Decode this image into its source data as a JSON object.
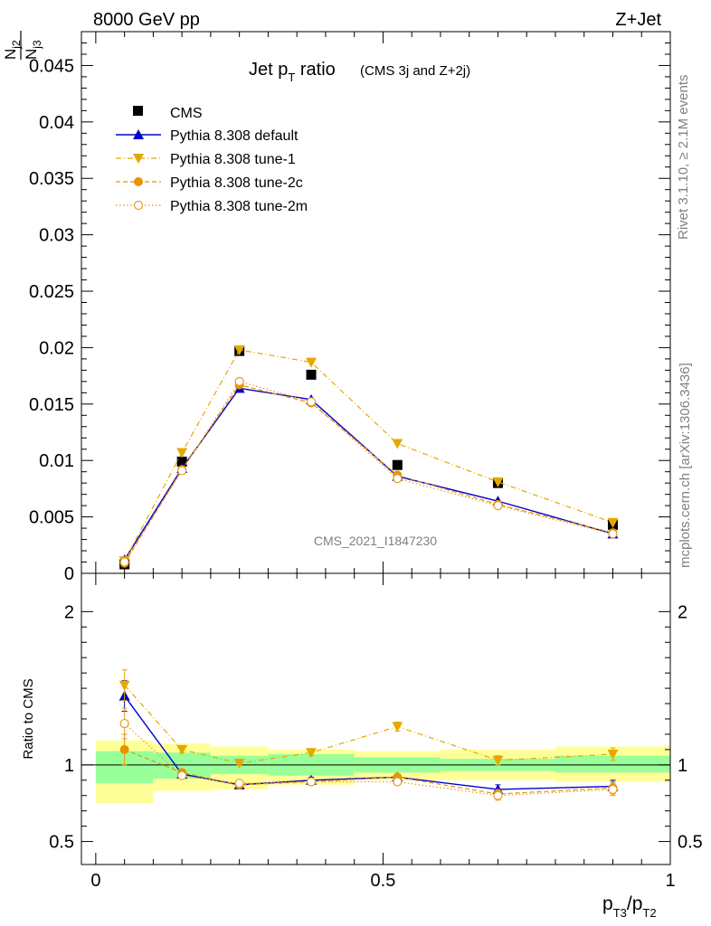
{
  "header": {
    "left": "8000 GeV pp",
    "right": "Z+Jet"
  },
  "side": {
    "rivet": "Rivet 3.1.10, ≥ 2.1M events",
    "mcplots": "mcplots.cern.ch [arXiv:1306.3436]"
  },
  "watermark": "CMS_2021_I1847230",
  "labels": {
    "title_main": "Jet p",
    "title_sub": "T",
    "title_rest": " ratio",
    "title_small": "(CMS 3j and Z+2j)",
    "ylabel_num_N": "N",
    "ylabel_num_sub": "j3",
    "ylabel_den_N": "N",
    "ylabel_den_sub": "j2",
    "ratio_ylabel": "Ratio to CMS",
    "xlabel_p1": "p",
    "xlabel_sub1": "T3",
    "xlabel_slash": "/p",
    "xlabel_sub2": "T2"
  },
  "colors": {
    "cms": "#000000",
    "default": "#0000cc",
    "tune1": "#e6a800",
    "tune2c": "#e69500",
    "tune2m": "#e69b1f",
    "band_inner": "#99ff99",
    "band_outer": "#ffff99"
  },
  "chart_data": {
    "type": "line",
    "x": [
      0.05,
      0.15,
      0.25,
      0.375,
      0.525,
      0.7,
      0.9
    ],
    "xlim": [
      -0.025,
      1.0
    ],
    "ylim": [
      0,
      0.048
    ],
    "yticks": [
      0,
      0.005,
      0.01,
      0.015,
      0.02,
      0.025,
      0.03,
      0.035,
      0.04,
      0.045
    ],
    "ytick_labels": [
      "0",
      "0.005",
      "0.01",
      "0.015",
      "0.02",
      "0.025",
      "0.03",
      "0.035",
      "0.04",
      "0.045"
    ],
    "xticks": [
      0,
      0.5,
      1
    ],
    "xtick_labels": [
      "0",
      "0.5",
      "1"
    ],
    "ratio_ylim": [
      0.35,
      2.25
    ],
    "ratio_yticks": [
      0.5,
      1,
      2
    ],
    "ratio_ytick_labels": [
      "0.5",
      "1",
      "2"
    ],
    "bins": [
      [
        0.0,
        0.1
      ],
      [
        0.1,
        0.2
      ],
      [
        0.2,
        0.3
      ],
      [
        0.3,
        0.45
      ],
      [
        0.45,
        0.6
      ],
      [
        0.6,
        0.8
      ],
      [
        0.8,
        1.0
      ]
    ],
    "band_inner": [
      [
        0.88,
        1.09
      ],
      [
        0.91,
        1.08
      ],
      [
        0.94,
        1.06
      ],
      [
        0.93,
        1.07
      ],
      [
        0.95,
        1.05
      ],
      [
        0.96,
        1.04
      ],
      [
        0.95,
        1.06
      ]
    ],
    "band_outer": [
      [
        0.75,
        1.16
      ],
      [
        0.83,
        1.14
      ],
      [
        0.84,
        1.12
      ],
      [
        0.87,
        1.1
      ],
      [
        0.9,
        1.09
      ],
      [
        0.9,
        1.1
      ],
      [
        0.89,
        1.12
      ]
    ],
    "series": [
      {
        "name": "CMS",
        "key": "cms",
        "values": [
          0.0008,
          0.0099,
          0.0197,
          0.0176,
          0.0096,
          0.008,
          0.0043
        ],
        "ratio": [
          1.0,
          1.0,
          1.0,
          1.0,
          1.0,
          1.0,
          1.0
        ]
      },
      {
        "name": "Pythia 8.308 default",
        "key": "default",
        "values": [
          0.0012,
          0.0093,
          0.0164,
          0.0154,
          0.0086,
          0.0064,
          0.0035
        ],
        "ratio": [
          1.45,
          0.94,
          0.87,
          0.9,
          0.92,
          0.84,
          0.86
        ],
        "err": [
          0.1,
          0.02,
          0.01,
          0.02,
          0.02,
          0.03,
          0.04
        ]
      },
      {
        "name": "Pythia 8.308 tune-1",
        "key": "tune1",
        "values": [
          0.0011,
          0.0107,
          0.0198,
          0.0187,
          0.0115,
          0.0081,
          0.0045
        ],
        "ratio": [
          1.52,
          1.1,
          1.01,
          1.08,
          1.25,
          1.03,
          1.07
        ],
        "err": [
          0.1,
          0.02,
          0.01,
          0.02,
          0.03,
          0.03,
          0.04
        ]
      },
      {
        "name": "Pythia 8.308 tune-2c",
        "key": "tune2c",
        "values": [
          0.0009,
          0.0092,
          0.0167,
          0.0151,
          0.0087,
          0.0061,
          0.0036
        ],
        "ratio": [
          1.1,
          0.95,
          0.87,
          0.89,
          0.92,
          0.81,
          0.85
        ],
        "err": [
          0.1,
          0.02,
          0.01,
          0.02,
          0.02,
          0.03,
          0.04
        ]
      },
      {
        "name": "Pythia 8.308 tune-2m",
        "key": "tune2m",
        "values": [
          0.001,
          0.0091,
          0.017,
          0.0152,
          0.0084,
          0.006,
          0.0035
        ],
        "ratio": [
          1.27,
          0.93,
          0.88,
          0.89,
          0.89,
          0.8,
          0.84
        ],
        "err": [
          0.1,
          0.02,
          0.01,
          0.02,
          0.02,
          0.03,
          0.04
        ]
      }
    ]
  }
}
